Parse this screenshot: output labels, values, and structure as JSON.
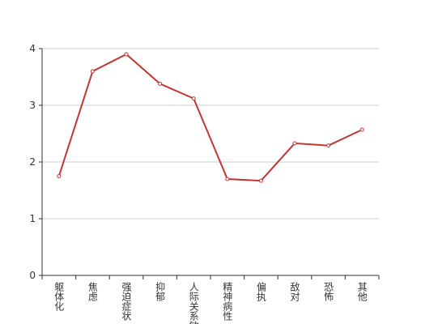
{
  "chart_data": {
    "type": "line",
    "categories": [
      "躯体化",
      "焦虑",
      "强迫症状",
      "抑郁",
      "人际关系敏感",
      "精神病性",
      "偏执",
      "敌对",
      "恐怖",
      "其他"
    ],
    "series": [
      {
        "color": "#c23531",
        "values": [
          1.75,
          3.6,
          3.9,
          3.38,
          3.12,
          1.7,
          1.67,
          2.33,
          2.29,
          2.57
        ]
      }
    ],
    "ylim": [
      0,
      4
    ],
    "yticks": [
      0,
      1,
      2,
      3,
      4
    ],
    "grid": true
  }
}
